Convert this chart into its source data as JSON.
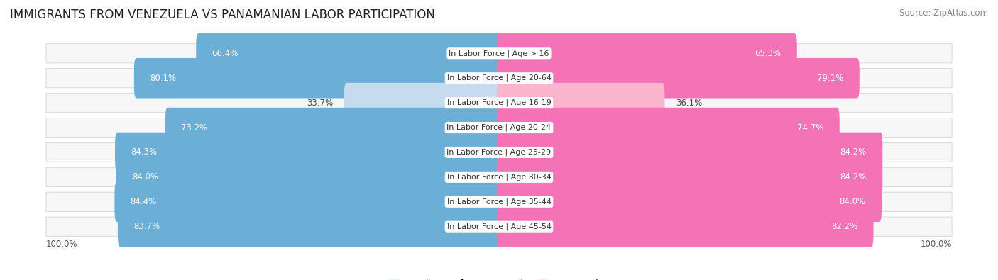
{
  "title": "IMMIGRANTS FROM VENEZUELA VS PANAMANIAN LABOR PARTICIPATION",
  "source": "Source: ZipAtlas.com",
  "categories": [
    "In Labor Force | Age > 16",
    "In Labor Force | Age 20-64",
    "In Labor Force | Age 16-19",
    "In Labor Force | Age 20-24",
    "In Labor Force | Age 25-29",
    "In Labor Force | Age 30-34",
    "In Labor Force | Age 35-44",
    "In Labor Force | Age 45-54"
  ],
  "venezuela_values": [
    66.4,
    80.1,
    33.7,
    73.2,
    84.3,
    84.0,
    84.4,
    83.7
  ],
  "panamanian_values": [
    65.3,
    79.1,
    36.1,
    74.7,
    84.2,
    84.2,
    84.0,
    82.2
  ],
  "venezuela_color": "#6baed6",
  "venezuela_color_light": "#c6dbef",
  "panamanian_color": "#f472b6",
  "panamanian_color_light": "#fbb6ce",
  "row_bg_color": "#f0f0f0",
  "row_border_color": "#d0d0d0",
  "label_color_dark": "#444444",
  "label_color_white": "#ffffff",
  "max_value": 100.0,
  "legend_venezuela": "Immigrants from Venezuela",
  "legend_panamanian": "Panamanian",
  "title_fontsize": 12,
  "source_fontsize": 8.5,
  "bar_label_fontsize": 8.5,
  "category_label_fontsize": 8,
  "legend_fontsize": 9,
  "axis_label_fontsize": 8.5,
  "threshold_light": 50
}
